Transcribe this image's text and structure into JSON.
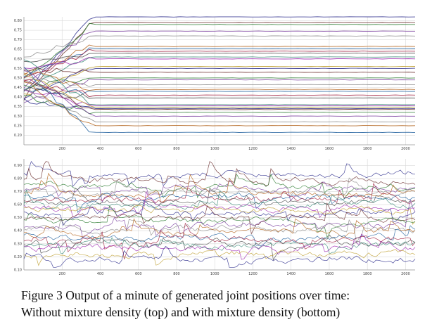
{
  "caption": {
    "line1": "Figure 3 Output of a minute of generated joint positions over time:",
    "line2": "Without mixture density (top) and with mixture density (bottom)"
  },
  "colors": {
    "grid": "#d9d9d9",
    "series_palette": [
      "#2b2b8c",
      "#6a2c2c",
      "#2e7d32",
      "#7b3fa0",
      "#8c8c8c",
      "#b5651d",
      "#1f5f9e",
      "#a02040",
      "#4a4a4a",
      "#3c8c7a",
      "#9c27b0",
      "#c0a030"
    ]
  },
  "chart_data": [
    {
      "type": "line",
      "name": "top",
      "xlim": [
        0,
        2050
      ],
      "ylim": [
        0.15,
        0.82
      ],
      "x_ticks": [
        "200",
        "400",
        "600",
        "800",
        "1000",
        "1200",
        "1400",
        "1600",
        "1800",
        "2000"
      ],
      "y_ticks": [
        "0.80",
        "0.75",
        "0.70",
        "0.65",
        "0.60",
        "0.55",
        "0.50",
        "0.45",
        "0.40",
        "0.35",
        "0.30",
        "0.25",
        "0.20"
      ],
      "grid": true,
      "series_levels": [
        0.82,
        0.79,
        0.78,
        0.745,
        0.72,
        0.665,
        0.655,
        0.64,
        0.63,
        0.61,
        0.6,
        0.56,
        0.55,
        0.53,
        0.5,
        0.49,
        0.465,
        0.44,
        0.43,
        0.41,
        0.395,
        0.36,
        0.355,
        0.345,
        0.34,
        0.335,
        0.32,
        0.3,
        0.27,
        0.25,
        0.215
      ]
    },
    {
      "type": "line",
      "name": "bottom",
      "xlim": [
        0,
        2050
      ],
      "ylim": [
        0.1,
        0.95
      ],
      "x_ticks": [
        "200",
        "400",
        "600",
        "800",
        "1000",
        "1200",
        "1400",
        "1600",
        "1800",
        "2000"
      ],
      "y_ticks": [
        "0.90",
        "0.80",
        "0.70",
        "0.60",
        "0.50",
        "0.40",
        "0.30",
        "0.20",
        "0.10"
      ],
      "grid": true,
      "series_levels": [
        0.84,
        0.78,
        0.74,
        0.72,
        0.7,
        0.68,
        0.66,
        0.64,
        0.62,
        0.6,
        0.58,
        0.56,
        0.53,
        0.5,
        0.47,
        0.44,
        0.41,
        0.38,
        0.35,
        0.33,
        0.31,
        0.29,
        0.27,
        0.22,
        0.18
      ]
    }
  ]
}
